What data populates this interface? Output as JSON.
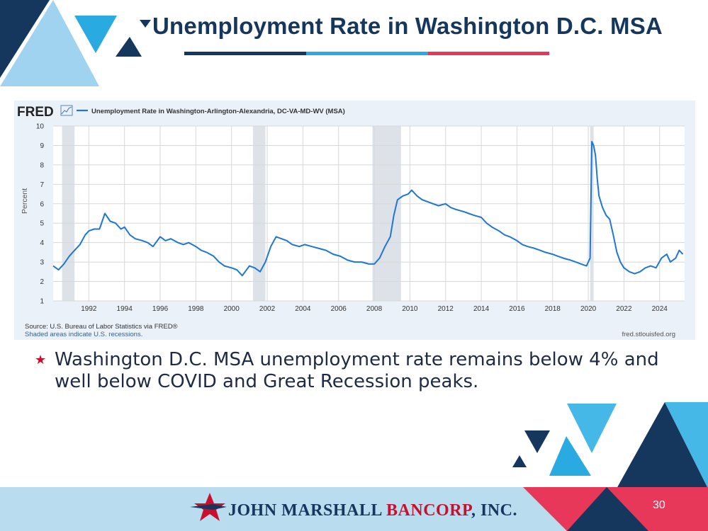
{
  "slide": {
    "title": "Unemployment Rate in Washington D.C. MSA",
    "bullet": "Washington D.C. MSA unemployment rate remains below 4% and well below COVID and Great Recession peaks.",
    "page_number": "30"
  },
  "branding": {
    "logo_part1": "JOHN MARSHALL ",
    "logo_part2": "BANCORP",
    "logo_part3": ", INC.",
    "navy": "#15375e",
    "blue": "#29aae1",
    "red": "#e8385a"
  },
  "fred": {
    "logo": "FRED",
    "series_label": "Unemployment Rate in Washington-Arlington-Alexandria, DC-VA-MD-WV (MSA)",
    "source": "Source: U.S. Bureau of Labor Statistics via FRED®",
    "shading_note": "Shaded areas indicate U.S. recessions.",
    "url": "fred.stlouisfed.org"
  },
  "chart_data": {
    "type": "line",
    "title": "Unemployment Rate in Washington-Arlington-Alexandria, DC-VA-MD-WV (MSA)",
    "xlabel": "",
    "ylabel": "Percent",
    "xlim": [
      1990.0,
      2025.4
    ],
    "ylim": [
      1,
      10
    ],
    "x_ticks": [
      1992,
      1994,
      1996,
      1998,
      2000,
      2002,
      2004,
      2006,
      2008,
      2010,
      2012,
      2014,
      2016,
      2018,
      2020,
      2022,
      2024
    ],
    "y_ticks": [
      1,
      2,
      3,
      4,
      5,
      6,
      7,
      8,
      9,
      10
    ],
    "line_color": "#1f77d4",
    "recessions": [
      [
        1990.5,
        1991.2
      ],
      [
        2001.2,
        2001.9
      ],
      [
        2007.9,
        2009.5
      ],
      [
        2020.1,
        2020.3
      ]
    ],
    "series": [
      {
        "name": "Unemployment Rate in Washington-Arlington-Alexandria, DC-VA-MD-WV (MSA)",
        "x": [
          1990.0,
          1990.3,
          1990.6,
          1990.9,
          1991.2,
          1991.5,
          1991.8,
          1992.0,
          1992.3,
          1992.6,
          1992.9,
          1993.2,
          1993.5,
          1993.8,
          1994.0,
          1994.3,
          1994.6,
          1995.0,
          1995.3,
          1995.6,
          1996.0,
          1996.3,
          1996.6,
          1997.0,
          1997.3,
          1997.6,
          1998.0,
          1998.3,
          1998.6,
          1999.0,
          1999.3,
          1999.6,
          2000.0,
          2000.3,
          2000.6,
          2001.0,
          2001.3,
          2001.6,
          2001.9,
          2002.2,
          2002.5,
          2002.8,
          2003.1,
          2003.4,
          2003.8,
          2004.1,
          2004.5,
          2004.9,
          2005.3,
          2005.7,
          2006.1,
          2006.5,
          2006.9,
          2007.3,
          2007.7,
          2008.0,
          2008.3,
          2008.6,
          2008.9,
          2009.1,
          2009.3,
          2009.6,
          2009.9,
          2010.1,
          2010.4,
          2010.7,
          2011.0,
          2011.3,
          2011.6,
          2012.0,
          2012.3,
          2012.6,
          2013.0,
          2013.3,
          2013.6,
          2014.0,
          2014.3,
          2014.6,
          2015.0,
          2015.3,
          2015.6,
          2016.0,
          2016.3,
          2016.6,
          2017.0,
          2017.3,
          2017.6,
          2018.0,
          2018.3,
          2018.6,
          2019.0,
          2019.3,
          2019.6,
          2019.9,
          2020.1,
          2020.2,
          2020.3,
          2020.4,
          2020.5,
          2020.6,
          2020.8,
          2021.0,
          2021.2,
          2021.4,
          2021.6,
          2021.8,
          2022.0,
          2022.3,
          2022.6,
          2022.9,
          2023.2,
          2023.5,
          2023.8,
          2024.1,
          2024.4,
          2024.6,
          2024.9,
          2025.1,
          2025.3
        ],
        "values": [
          2.8,
          2.6,
          2.9,
          3.3,
          3.6,
          3.9,
          4.4,
          4.6,
          4.7,
          4.7,
          5.5,
          5.1,
          5.0,
          4.7,
          4.8,
          4.4,
          4.2,
          4.1,
          4.0,
          3.8,
          4.3,
          4.1,
          4.2,
          4.0,
          3.9,
          4.0,
          3.8,
          3.6,
          3.5,
          3.3,
          3.0,
          2.8,
          2.7,
          2.6,
          2.3,
          2.8,
          2.7,
          2.5,
          3.0,
          3.8,
          4.3,
          4.2,
          4.1,
          3.9,
          3.8,
          3.9,
          3.8,
          3.7,
          3.6,
          3.4,
          3.3,
          3.1,
          3.0,
          3.0,
          2.9,
          2.9,
          3.2,
          3.8,
          4.3,
          5.4,
          6.2,
          6.4,
          6.5,
          6.7,
          6.4,
          6.2,
          6.1,
          6.0,
          5.9,
          6.0,
          5.8,
          5.7,
          5.6,
          5.5,
          5.4,
          5.3,
          5.0,
          4.8,
          4.6,
          4.4,
          4.3,
          4.1,
          3.9,
          3.8,
          3.7,
          3.6,
          3.5,
          3.4,
          3.3,
          3.2,
          3.1,
          3.0,
          2.9,
          2.8,
          3.2,
          9.2,
          9.0,
          8.5,
          7.3,
          6.4,
          5.8,
          5.4,
          5.2,
          4.4,
          3.5,
          3.0,
          2.7,
          2.5,
          2.4,
          2.5,
          2.7,
          2.8,
          2.7,
          3.2,
          3.4,
          3.0,
          3.2,
          3.6,
          3.4
        ]
      }
    ]
  }
}
